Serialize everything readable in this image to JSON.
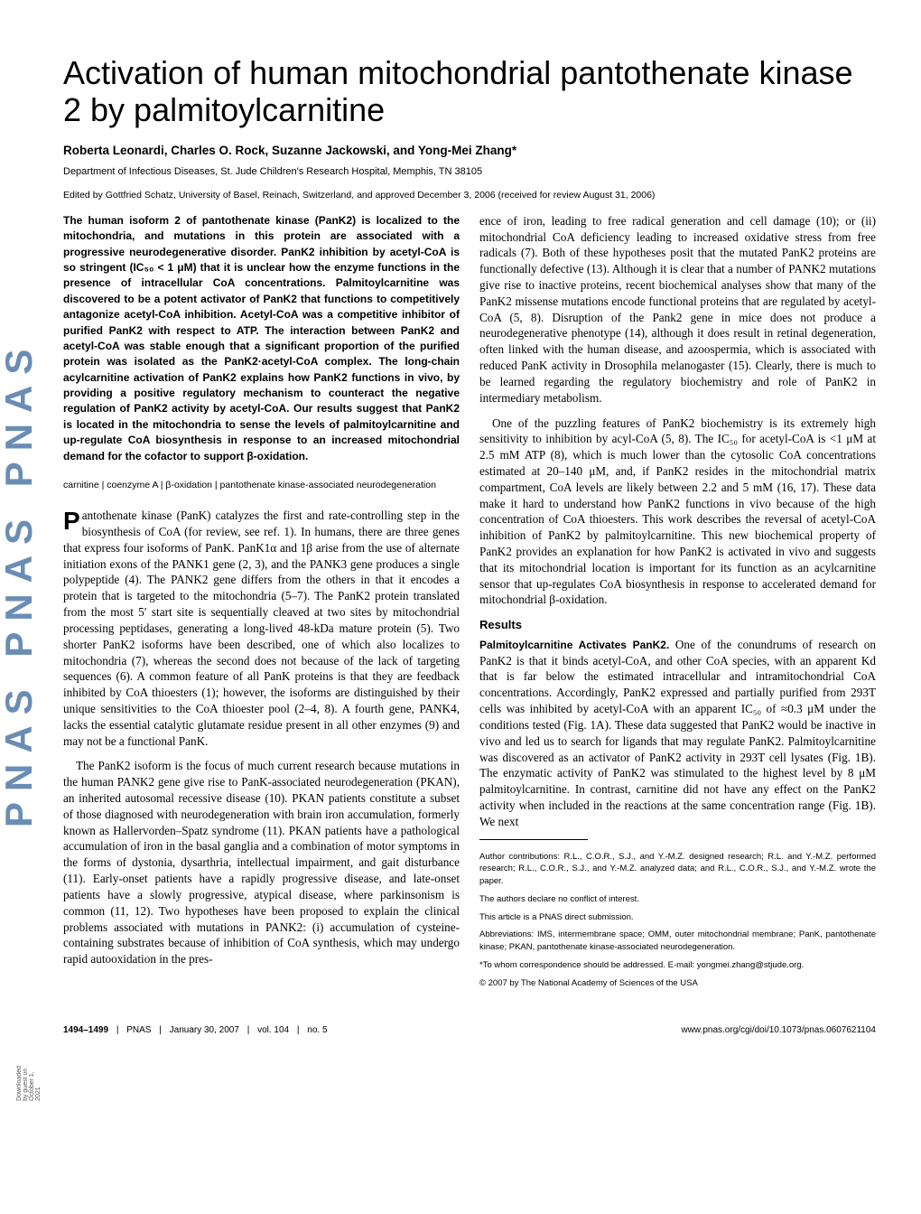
{
  "sidebar_text": "PNAS  PNAS  PNAS",
  "download_note": "Downloaded by guest on October 1, 2021",
  "title": "Activation of human mitochondrial pantothenate kinase 2 by palmitoylcarnitine",
  "authors": "Roberta Leonardi, Charles O. Rock, Suzanne Jackowski, and Yong-Mei Zhang*",
  "affiliation": "Department of Infectious Diseases, St. Jude Children's Research Hospital, Memphis, TN 38105",
  "edited": "Edited by Gottfried Schatz, University of Basel, Reinach, Switzerland, and approved December 3, 2006 (received for review August 31, 2006)",
  "abstract": "The human isoform 2 of pantothenate kinase (PanK2) is localized to the mitochondria, and mutations in this protein are associated with a progressive neurodegenerative disorder. PanK2 inhibition by acetyl-CoA is so stringent (IC₅₀ < 1 μM) that it is unclear how the enzyme functions in the presence of intracellular CoA concentrations. Palmitoylcarnitine was discovered to be a potent activator of PanK2 that functions to competitively antagonize acetyl-CoA inhibition. Acetyl-CoA was a competitive inhibitor of purified PanK2 with respect to ATP. The interaction between PanK2 and acetyl-CoA was stable enough that a significant proportion of the purified protein was isolated as the PanK2·acetyl-CoA complex. The long-chain acylcarnitine activation of PanK2 explains how PanK2 functions in vivo, by providing a positive regulatory mechanism to counteract the negative regulation of PanK2 activity by acetyl-CoA. Our results suggest that PanK2 is located in the mitochondria to sense the levels of palmitoylcarnitine and up-regulate CoA biosynthesis in response to an increased mitochondrial demand for the cofactor to support β-oxidation.",
  "keywords": "carnitine | coenzyme A | β-oxidation | pantothenate kinase-associated neurodegeneration",
  "left_dropcap": "P",
  "left_para1": "antothenate kinase (PanK) catalyzes the first and rate-controlling step in the biosynthesis of CoA (for review, see ref. 1). In humans, there are three genes that express four isoforms of PanK. PanK1α and 1β arise from the use of alternate initiation exons of the PANK1 gene (2, 3), and the PANK3 gene produces a single polypeptide (4). The PANK2 gene differs from the others in that it encodes a protein that is targeted to the mitochondria (5–7). The PanK2 protein translated from the most 5′ start site is sequentially cleaved at two sites by mitochondrial processing peptidases, generating a long-lived 48-kDa mature protein (5). Two shorter PanK2 isoforms have been described, one of which also localizes to mitochondria (7), whereas the second does not because of the lack of targeting sequences (6). A common feature of all PanK proteins is that they are feedback inhibited by CoA thioesters (1); however, the isoforms are distinguished by their unique sensitivities to the CoA thioester pool (2–4, 8). A fourth gene, PANK4, lacks the essential catalytic glutamate residue present in all other enzymes (9) and may not be a functional PanK.",
  "left_para2": "The PanK2 isoform is the focus of much current research because mutations in the human PANK2 gene give rise to PanK-associated neurodegeneration (PKAN), an inherited autosomal recessive disease (10). PKAN patients constitute a subset of those diagnosed with neurodegeneration with brain iron accumulation, formerly known as Hallervorden–Spatz syndrome (11). PKAN patients have a pathological accumulation of iron in the basal ganglia and a combination of motor symptoms in the forms of dystonia, dysarthria, intellectual impairment, and gait disturbance (11). Early-onset patients have a rapidly progressive disease, and late-onset patients have a slowly progressive, atypical disease, where parkinsonism is common (11, 12). Two hypotheses have been proposed to explain the clinical problems associated with mutations in PANK2: (i) accumulation of cysteine-containing substrates because of inhibition of CoA synthesis, which may undergo rapid autooxidation in the pres-",
  "right_para1": "ence of iron, leading to free radical generation and cell damage (10); or (ii) mitochondrial CoA deficiency leading to increased oxidative stress from free radicals (7). Both of these hypotheses posit that the mutated PanK2 proteins are functionally defective (13). Although it is clear that a number of PANK2 mutations give rise to inactive proteins, recent biochemical analyses show that many of the PanK2 missense mutations encode functional proteins that are regulated by acetyl-CoA (5, 8). Disruption of the Pank2 gene in mice does not produce a neurodegenerative phenotype (14), although it does result in retinal degeneration, often linked with the human disease, and azoospermia, which is associated with reduced PanK activity in Drosophila melanogaster (15). Clearly, there is much to be learned regarding the regulatory biochemistry and role of PanK2 in intermediary metabolism.",
  "right_para2": "One of the puzzling features of PanK2 biochemistry is its extremely high sensitivity to inhibition by acyl-CoA (5, 8). The IC₅₀ for acetyl-CoA is <1 μM at 2.5 mM ATP (8), which is much lower than the cytosolic CoA concentrations estimated at 20–140 μM, and, if PanK2 resides in the mitochondrial matrix compartment, CoA levels are likely between 2.2 and 5 mM (16, 17). These data make it hard to understand how PanK2 functions in vivo because of the high concentration of CoA thioesters. This work describes the reversal of acetyl-CoA inhibition of PanK2 by palmitoylcarnitine. This new biochemical property of PanK2 provides an explanation for how PanK2 is activated in vivo and suggests that its mitochondrial location is important for its function as an acylcarnitine sensor that up-regulates CoA biosynthesis in response to accelerated demand for mitochondrial β-oxidation.",
  "results_head": "Results",
  "results_runin": "Palmitoylcarnitine Activates PanK2.",
  "results_para": " One of the conundrums of research on PanK2 is that it binds acetyl-CoA, and other CoA species, with an apparent Kd that is far below the estimated intracellular and intramitochondrial CoA concentrations. Accordingly, PanK2 expressed and partially purified from 293T cells was inhibited by acetyl-CoA with an apparent IC₅₀ of ≈0.3 μM under the conditions tested (Fig. 1A). These data suggested that PanK2 would be inactive in vivo and led us to search for ligands that may regulate PanK2. Palmitoylcarnitine was discovered as an activator of PanK2 activity in 293T cell lysates (Fig. 1B). The enzymatic activity of PanK2 was stimulated to the highest level by 8 μM palmitoylcarnitine. In contrast, carnitine did not have any effect on the PanK2 activity when included in the reactions at the same concentration range (Fig. 1B). We next",
  "footnotes": {
    "contrib": "Author contributions: R.L., C.O.R., S.J., and Y.-M.Z. designed research; R.L. and Y.-M.Z. performed research; R.L., C.O.R., S.J., and Y.-M.Z. analyzed data; and R.L., C.O.R., S.J., and Y.-M.Z. wrote the paper.",
    "conflict": "The authors declare no conflict of interest.",
    "direct": "This article is a PNAS direct submission.",
    "abbrev": "Abbreviations: IMS, intermembrane space; OMM, outer mitochondrial membrane; PanK, pantothenate kinase; PKAN, pantothenate kinase-associated neurodegeneration.",
    "correspond": "*To whom correspondence should be addressed. E-mail: yongmei.zhang@stjude.org.",
    "copyright": "© 2007 by The National Academy of Sciences of the USA"
  },
  "footer": {
    "pages": "1494–1499",
    "journal": "PNAS",
    "date": "January 30, 2007",
    "vol": "vol. 104",
    "no": "no. 5",
    "url": "www.pnas.org/cgi/doi/10.1073/pnas.0607621104"
  }
}
